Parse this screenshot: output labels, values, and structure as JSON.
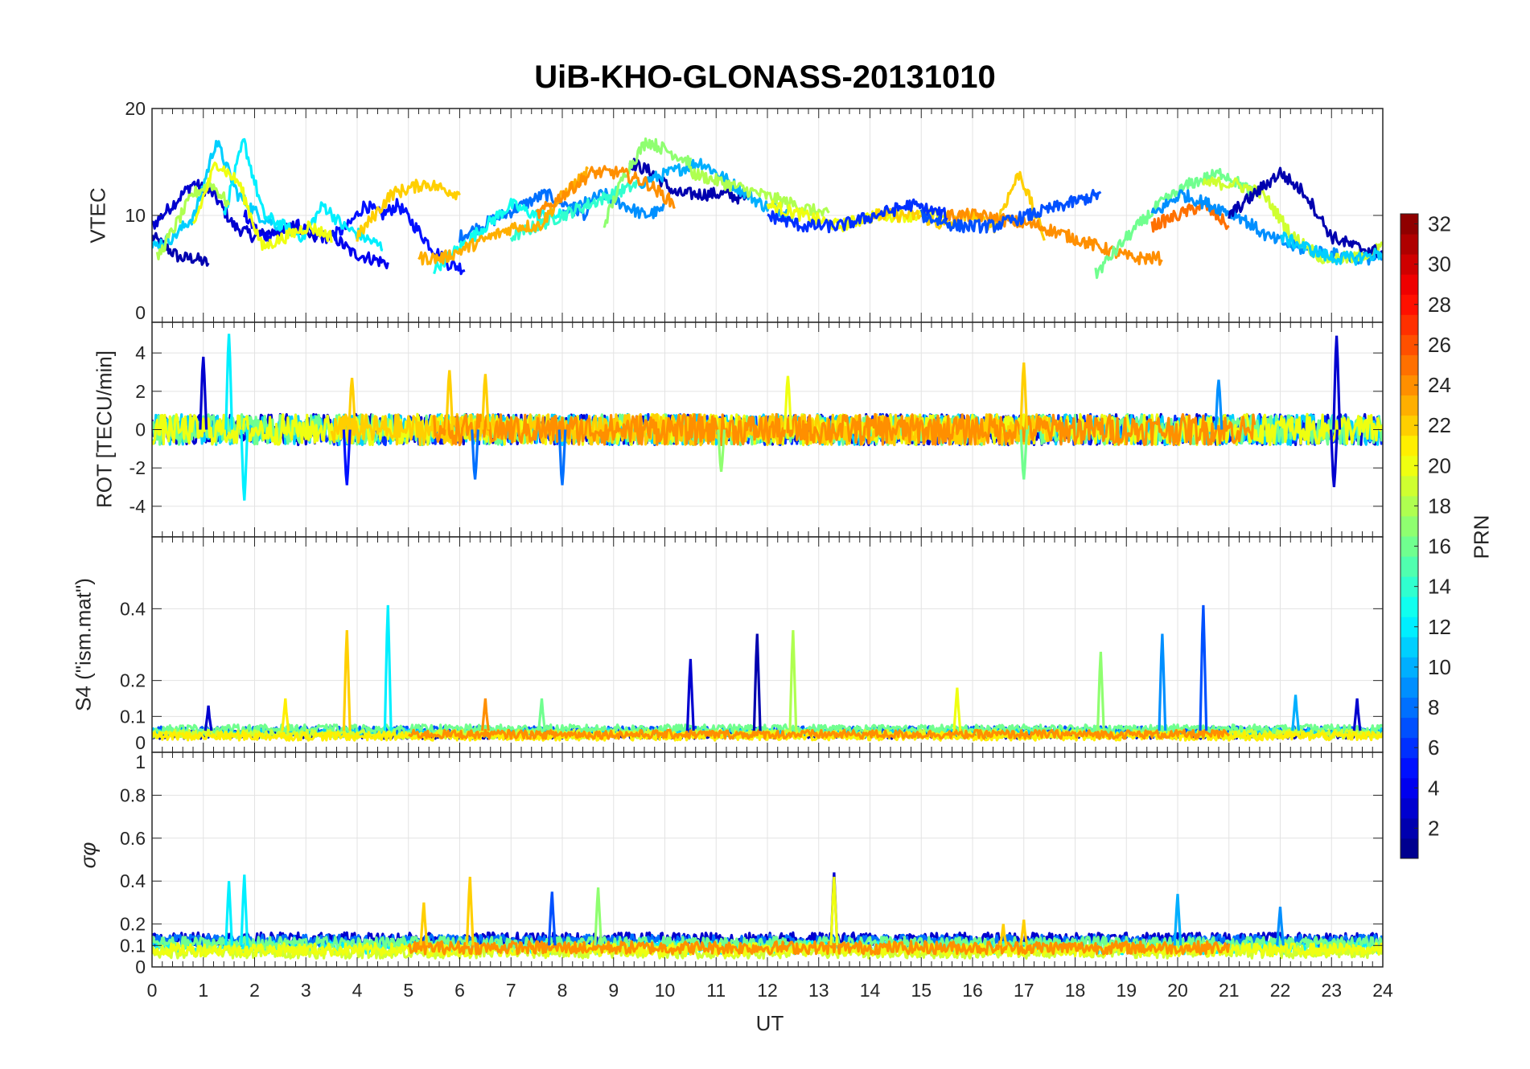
{
  "chart_data": {
    "type": "line",
    "title": "UiB-KHO-GLONASS-20131010",
    "xlabel": "UT",
    "xlim": [
      0,
      24
    ],
    "xticks": [
      "0",
      "1",
      "2",
      "3",
      "4",
      "5",
      "6",
      "7",
      "8",
      "9",
      "10",
      "11",
      "12",
      "13",
      "14",
      "15",
      "16",
      "17",
      "18",
      "19",
      "20",
      "21",
      "22",
      "23",
      "24"
    ],
    "grid": true,
    "colorbar": {
      "label": "PRN",
      "range": [
        1,
        32
      ],
      "ticks": [
        "2",
        "4",
        "6",
        "8",
        "10",
        "12",
        "14",
        "16",
        "18",
        "20",
        "22",
        "24",
        "26",
        "28",
        "30",
        "32"
      ],
      "colormap": "jet",
      "placement": "right"
    },
    "panels": [
      {
        "ylabel": "VTEC",
        "ylim": [
          0,
          20
        ],
        "yticks": [
          {
            "v": 0,
            "t": "0"
          },
          {
            "v": 10,
            "t": "10"
          },
          {
            "v": 20,
            "t": "20"
          }
        ],
        "noise": 0.6,
        "series": [
          {
            "prn": 2,
            "t": [
              0,
              1.1
            ],
            "v": [
              8,
              7,
              6,
              6,
              5.5
            ]
          },
          {
            "prn": 3,
            "t": [
              0,
              3.2
            ],
            "v": [
              9,
              11,
              13,
              12,
              9,
              8,
              8.5,
              9,
              8
            ]
          },
          {
            "prn": 4,
            "t": [
              1.8,
              4.6
            ],
            "v": [
              10,
              8,
              8.5,
              9,
              8,
              8,
              6.5,
              6,
              5.5
            ]
          },
          {
            "prn": 5,
            "t": [
              3.5,
              6.1
            ],
            "v": [
              8,
              9,
              11,
              10,
              11,
              9,
              7,
              5.5,
              5
            ]
          },
          {
            "prn": 2,
            "t": [
              9.3,
              11.6
            ],
            "v": [
              15,
              14,
              12,
              12,
              12,
              11.5
            ]
          },
          {
            "prn": 8,
            "t": [
              6,
              8.5
            ],
            "v": [
              8,
              9,
              10,
              11,
              12,
              11,
              10
            ]
          },
          {
            "prn": 9,
            "t": [
              8,
              10
            ],
            "v": [
              10,
              11,
              12,
              11,
              10,
              10.5
            ]
          },
          {
            "prn": 10,
            "t": [
              9.5,
              12.5
            ],
            "v": [
              13,
              14,
              15,
              13,
              11,
              10
            ]
          },
          {
            "prn": 11,
            "t": [
              0,
              2.5
            ],
            "v": [
              7,
              8,
              10,
              17,
              12,
              10,
              9
            ]
          },
          {
            "prn": 12,
            "t": [
              1.4,
              4.5
            ],
            "v": [
              10,
              17,
              10,
              9,
              8,
              11,
              9,
              8,
              7
            ]
          },
          {
            "prn": 13,
            "t": [
              5.5,
              8
            ],
            "v": [
              5,
              7,
              9,
              11,
              10,
              10
            ]
          },
          {
            "prn": 14,
            "t": [
              7,
              9.5
            ],
            "v": [
              8,
              9,
              10,
              11,
              12,
              13
            ]
          },
          {
            "prn": 17,
            "t": [
              8.8,
              10.5
            ],
            "v": [
              9,
              14,
              17,
              16,
              15
            ]
          },
          {
            "prn": 18,
            "t": [
              0.1,
              1.5
            ],
            "v": [
              6,
              9,
              12,
              13,
              11
            ]
          },
          {
            "prn": 18,
            "t": [
              10.5,
              13.2
            ],
            "v": [
              14,
              13,
              12,
              11,
              10
            ]
          },
          {
            "prn": 20,
            "t": [
              0.8,
              3.5
            ],
            "v": [
              9,
              15,
              13,
              7,
              8,
              9,
              8
            ]
          },
          {
            "prn": 20,
            "t": [
              12,
              15.5
            ],
            "v": [
              11,
              10,
              9,
              10,
              10,
              10
            ]
          },
          {
            "prn": 22,
            "t": [
              4,
              6
            ],
            "v": [
              8,
              12,
              13,
              12
            ]
          },
          {
            "prn": 22,
            "t": [
              14,
              17.4
            ],
            "v": [
              10,
              10,
              10,
              9,
              10,
              9,
              14,
              8
            ]
          },
          {
            "prn": 23,
            "t": [
              5.2,
              8.5
            ],
            "v": [
              6,
              6,
              7,
              8,
              9,
              9,
              12,
              14
            ]
          },
          {
            "prn": 24,
            "t": [
              7.5,
              10.2
            ],
            "v": [
              10,
              12,
              14,
              14,
              13,
              11
            ]
          },
          {
            "prn": 24,
            "t": [
              15.5,
              19.7
            ],
            "v": [
              10,
              10,
              9.5,
              9,
              8,
              7,
              6,
              6
            ]
          },
          {
            "prn": 25,
            "t": [
              19.5,
              21
            ],
            "v": [
              9,
              10,
              11,
              9
            ]
          },
          {
            "prn": 16,
            "t": [
              18.4,
              21.5
            ],
            "v": [
              4.5,
              8,
              11,
              13,
              14,
              12
            ]
          },
          {
            "prn": 6,
            "t": [
              12,
              15.5
            ],
            "v": [
              10,
              9,
              9,
              10,
              11,
              10
            ]
          },
          {
            "prn": 7,
            "t": [
              15,
              18.5
            ],
            "v": [
              10,
              9,
              9,
              10,
              11,
              12
            ]
          },
          {
            "prn": 9,
            "t": [
              19.5,
              24
            ],
            "v": [
              10,
              12,
              11,
              10,
              8,
              7,
              6.5,
              6,
              6
            ]
          },
          {
            "prn": 19,
            "t": [
              20.5,
              24
            ],
            "v": [
              13,
              13,
              12,
              8,
              6,
              6,
              7
            ]
          },
          {
            "prn": 2,
            "t": [
              21,
              24
            ],
            "v": [
              10,
              12,
              14,
              12,
              8,
              7,
              6.5
            ]
          },
          {
            "prn": 11,
            "t": [
              22,
              24
            ],
            "v": [
              8,
              7,
              6,
              6,
              6.5
            ]
          }
        ]
      },
      {
        "ylabel": "ROT [TECU/min]",
        "ylim": [
          -5.6,
          5.6
        ],
        "yticks": [
          {
            "v": -4,
            "t": "-4"
          },
          {
            "v": -2,
            "t": "-2"
          },
          {
            "v": 0,
            "t": "0"
          },
          {
            "v": 2,
            "t": "2"
          },
          {
            "v": 4,
            "t": "4"
          }
        ],
        "noise": 0.8,
        "series": [
          {
            "prn": 3,
            "t": [
              0,
              24
            ],
            "v": [
              0
            ]
          },
          {
            "prn": 6,
            "t": [
              3,
              24
            ],
            "v": [
              0
            ]
          },
          {
            "prn": 11,
            "t": [
              0,
              24
            ],
            "v": [
              0
            ]
          },
          {
            "prn": 16,
            "t": [
              0,
              24
            ],
            "v": [
              0
            ]
          },
          {
            "prn": 20,
            "t": [
              0,
              24
            ],
            "v": [
              0
            ]
          },
          {
            "prn": 22,
            "t": [
              3.5,
              17.5
            ],
            "v": [
              0
            ]
          },
          {
            "prn": 24,
            "t": [
              5.5,
              21.5
            ],
            "v": [
              0
            ]
          }
        ],
        "spikes": [
          {
            "prn": 3,
            "t": 1.0,
            "v": 3.8
          },
          {
            "prn": 12,
            "t": 1.5,
            "v": 5.0
          },
          {
            "prn": 12,
            "t": 1.8,
            "v": -3.7
          },
          {
            "prn": 5,
            "t": 3.8,
            "v": -2.9
          },
          {
            "prn": 22,
            "t": 3.9,
            "v": 2.7
          },
          {
            "prn": 22,
            "t": 5.8,
            "v": 3.1
          },
          {
            "prn": 8,
            "t": 6.3,
            "v": -2.6
          },
          {
            "prn": 22,
            "t": 6.5,
            "v": 2.9
          },
          {
            "prn": 8,
            "t": 8.0,
            "v": -2.9
          },
          {
            "prn": 20,
            "t": 12.4,
            "v": 2.8
          },
          {
            "prn": 17,
            "t": 11.1,
            "v": -2.2
          },
          {
            "prn": 22,
            "t": 17.0,
            "v": 3.5
          },
          {
            "prn": 16,
            "t": 17.0,
            "v": -2.6
          },
          {
            "prn": 9,
            "t": 20.8,
            "v": 2.6
          },
          {
            "prn": 3,
            "t": 23.1,
            "v": 4.9
          },
          {
            "prn": 3,
            "t": 23.05,
            "v": -3.0
          }
        ]
      },
      {
        "ylabel": "S4 (\"ism.mat\")",
        "ylim": [
          0,
          0.6
        ],
        "yticks": [
          {
            "v": 0,
            "t": "0"
          },
          {
            "v": 0.1,
            "t": "0.1"
          },
          {
            "v": 0.2,
            "t": "0.2"
          },
          {
            "v": 0.4,
            "t": "0.4"
          }
        ],
        "noise": 0.012,
        "series": [
          {
            "prn": 2,
            "t": [
              0,
              24
            ],
            "v": [
              0.05
            ]
          },
          {
            "prn": 7,
            "t": [
              0,
              24
            ],
            "v": [
              0.06
            ]
          },
          {
            "prn": 11,
            "t": [
              0,
              24
            ],
            "v": [
              0.055
            ]
          },
          {
            "prn": 16,
            "t": [
              0,
              24
            ],
            "v": [
              0.065
            ]
          },
          {
            "prn": 19,
            "t": [
              0,
              24
            ],
            "v": [
              0.05
            ]
          },
          {
            "prn": 21,
            "t": [
              0,
              24
            ],
            "v": [
              0.045
            ]
          },
          {
            "prn": 24,
            "t": [
              5,
              21
            ],
            "v": [
              0.05
            ]
          }
        ],
        "spikes": [
          {
            "prn": 22,
            "t": 3.8,
            "v": 0.34
          },
          {
            "prn": 12,
            "t": 4.6,
            "v": 0.41
          },
          {
            "prn": 3,
            "t": 10.5,
            "v": 0.26
          },
          {
            "prn": 2,
            "t": 11.8,
            "v": 0.33
          },
          {
            "prn": 18,
            "t": 12.5,
            "v": 0.34
          },
          {
            "prn": 17,
            "t": 18.5,
            "v": 0.28
          },
          {
            "prn": 9,
            "t": 19.7,
            "v": 0.33
          },
          {
            "prn": 7,
            "t": 20.5,
            "v": 0.41
          },
          {
            "prn": 20,
            "t": 15.7,
            "v": 0.18
          },
          {
            "prn": 24,
            "t": 6.5,
            "v": 0.15
          },
          {
            "prn": 16,
            "t": 7.6,
            "v": 0.15
          },
          {
            "prn": 21,
            "t": 2.6,
            "v": 0.15
          },
          {
            "prn": 3,
            "t": 1.1,
            "v": 0.13
          },
          {
            "prn": 3,
            "t": 23.5,
            "v": 0.15
          },
          {
            "prn": 10,
            "t": 22.3,
            "v": 0.16
          }
        ]
      },
      {
        "ylabel": "σφ",
        "ylim": [
          0,
          1
        ],
        "yticks": [
          {
            "v": 0,
            "t": "0"
          },
          {
            "v": 0.1,
            "t": "0.1"
          },
          {
            "v": 0.2,
            "t": "0.2"
          },
          {
            "v": 0.4,
            "t": "0.4"
          },
          {
            "v": 0.6,
            "t": "0.6"
          },
          {
            "v": 0.8,
            "t": "0.8"
          },
          {
            "v": 1,
            "t": "1"
          }
        ],
        "noise": 0.03,
        "series": [
          {
            "prn": 3,
            "t": [
              0,
              24
            ],
            "v": [
              0.13
            ]
          },
          {
            "prn": 8,
            "t": [
              0,
              24
            ],
            "v": [
              0.12
            ]
          },
          {
            "prn": 12,
            "t": [
              0,
              24
            ],
            "v": [
              0.09
            ]
          },
          {
            "prn": 16,
            "t": [
              0,
              24
            ],
            "v": [
              0.11
            ]
          },
          {
            "prn": 19,
            "t": [
              0,
              24
            ],
            "v": [
              0.07
            ]
          },
          {
            "prn": 20,
            "t": [
              0,
              24
            ],
            "v": [
              0.08
            ]
          },
          {
            "prn": 24,
            "t": [
              5,
              21
            ],
            "v": [
              0.09
            ]
          }
        ],
        "spikes": [
          {
            "prn": 12,
            "t": 1.5,
            "v": 0.4
          },
          {
            "prn": 12,
            "t": 1.8,
            "v": 0.43
          },
          {
            "prn": 22,
            "t": 5.3,
            "v": 0.3
          },
          {
            "prn": 22,
            "t": 6.2,
            "v": 0.42
          },
          {
            "prn": 17,
            "t": 8.7,
            "v": 0.37
          },
          {
            "prn": 7,
            "t": 7.8,
            "v": 0.35
          },
          {
            "prn": 3,
            "t": 13.3,
            "v": 0.44
          },
          {
            "prn": 20,
            "t": 13.3,
            "v": 0.42
          },
          {
            "prn": 10,
            "t": 20.0,
            "v": 0.34
          },
          {
            "prn": 22,
            "t": 17.0,
            "v": 0.22
          },
          {
            "prn": 22,
            "t": 16.6,
            "v": 0.2
          },
          {
            "prn": 9,
            "t": 22.0,
            "v": 0.28
          }
        ]
      }
    ]
  }
}
